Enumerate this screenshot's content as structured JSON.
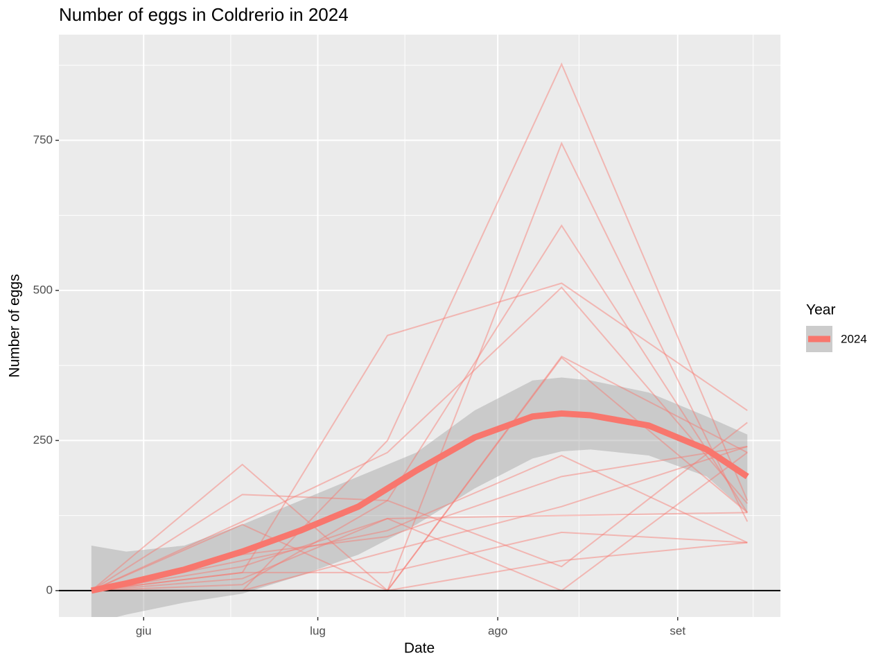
{
  "chart_data": {
    "type": "line",
    "title": "Number of eggs in Coldrerio in 2024",
    "x_label": "Date",
    "y_label": "Number of eggs",
    "legend_title": "Year",
    "x": [
      144,
      170,
      195,
      225,
      257
    ],
    "xlim": [
      138.4,
      262.7
    ],
    "xticks": [
      {
        "value": 153,
        "label": "giu"
      },
      {
        "value": 183,
        "label": "lug"
      },
      {
        "value": 214,
        "label": "ago"
      },
      {
        "value": 245,
        "label": "set"
      }
    ],
    "ylim": [
      -44,
      926
    ],
    "yticks": [
      0,
      250,
      500,
      750
    ],
    "grid": true,
    "hline": 0,
    "line_color": "#F8766D",
    "series": [
      {
        "values": [
          0,
          0,
          250,
          877,
          150
        ]
      },
      {
        "values": [
          0,
          0,
          0,
          745,
          115
        ]
      },
      {
        "values": [
          0,
          30,
          425,
          512,
          300
        ]
      },
      {
        "values": [
          0,
          160,
          150,
          608,
          130
        ]
      },
      {
        "values": [
          0,
          115,
          230,
          505,
          145
        ]
      },
      {
        "values": [
          0,
          210,
          0,
          390,
          230
        ]
      },
      {
        "values": [
          0,
          110,
          0,
          388,
          130
        ]
      },
      {
        "values": [
          0,
          50,
          100,
          225,
          80
        ]
      },
      {
        "values": [
          0,
          20,
          120,
          125,
          130
        ]
      },
      {
        "values": [
          0,
          0,
          65,
          140,
          240
        ]
      },
      {
        "values": [
          0,
          30,
          30,
          97,
          80
        ]
      },
      {
        "values": [
          0,
          10,
          150,
          40,
          280
        ]
      },
      {
        "values": [
          0,
          40,
          120,
          0,
          230
        ]
      },
      {
        "values": [
          0,
          0,
          0,
          50,
          80
        ]
      },
      {
        "values": [
          0,
          60,
          90,
          190,
          240
        ]
      }
    ],
    "smooth": {
      "name": "2024",
      "color": "#F8766D",
      "ribbon_color": "#999999",
      "x": [
        144,
        150,
        160,
        170,
        180,
        190,
        200,
        210,
        220,
        225,
        230,
        240,
        250,
        257
      ],
      "values": [
        0,
        12,
        35,
        65,
        100,
        140,
        200,
        255,
        290,
        295,
        292,
        275,
        235,
        190
      ],
      "lower": [
        -55,
        -40,
        -20,
        -5,
        25,
        60,
        110,
        170,
        220,
        232,
        235,
        225,
        190,
        130
      ],
      "upper": [
        75,
        65,
        75,
        110,
        150,
        190,
        230,
        300,
        350,
        355,
        350,
        330,
        290,
        260
      ]
    }
  }
}
